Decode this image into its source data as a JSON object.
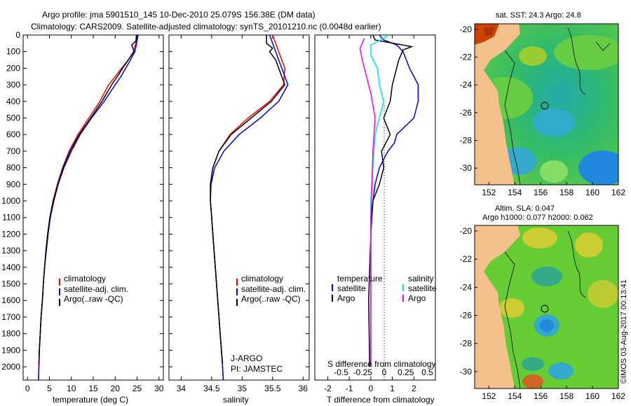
{
  "title": {
    "line1": "Argo profile: jma 5901510_145 10-Dec-2010 25.079S 156.38E (DM data)",
    "line2": "Climatology: CARS2009. Satellite-adjusted climatology: synTS_20101210.nc (0.0048d earlier)"
  },
  "colors": {
    "climatology": "#ff0000",
    "satellite": "#0000ff",
    "argo": "#000000",
    "satellite_s": "#00e5ee",
    "argo_s": "#ff00ff"
  },
  "chart_data": [
    {
      "id": "temperature",
      "type": "line",
      "xlabel": "temperature (deg C)",
      "xlim": [
        -1,
        31
      ],
      "xticks": [
        0,
        5,
        10,
        15,
        20,
        25,
        30
      ],
      "ylim": [
        2080,
        0
      ],
      "yticks": [
        0,
        100,
        200,
        300,
        400,
        500,
        600,
        700,
        800,
        900,
        1000,
        1100,
        1200,
        1300,
        1400,
        1500,
        1600,
        1700,
        1800,
        1900,
        2000
      ],
      "legend": [
        "climatology",
        "satellite-adj. clim.",
        "Argo(..raw -QC)"
      ],
      "series": [
        {
          "name": "climatology",
          "color": "#ff0000",
          "points": [
            [
              24.8,
              0
            ],
            [
              24.7,
              50
            ],
            [
              24.2,
              100
            ],
            [
              23,
              150
            ],
            [
              21.5,
              200
            ],
            [
              20,
              250
            ],
            [
              18.5,
              300
            ],
            [
              16.5,
              400
            ],
            [
              14,
              500
            ],
            [
              11.5,
              600
            ],
            [
              9.5,
              700
            ],
            [
              8,
              800
            ],
            [
              6.8,
              900
            ],
            [
              5.8,
              1000
            ],
            [
              5.1,
              1100
            ],
            [
              4.6,
              1200
            ],
            [
              4.2,
              1300
            ],
            [
              3.9,
              1400
            ],
            [
              3.6,
              1500
            ],
            [
              3.4,
              1600
            ],
            [
              3.1,
              1700
            ],
            [
              2.9,
              1800
            ],
            [
              2.7,
              1900
            ],
            [
              2.6,
              2000
            ],
            [
              2.5,
              2080
            ]
          ]
        },
        {
          "name": "satellite-adj. clim.",
          "color": "#0000ff",
          "points": [
            [
              25.2,
              0
            ],
            [
              24.9,
              50
            ],
            [
              24.5,
              100
            ],
            [
              23.5,
              150
            ],
            [
              22.4,
              200
            ],
            [
              21.3,
              250
            ],
            [
              20,
              300
            ],
            [
              17.5,
              400
            ],
            [
              14.6,
              500
            ],
            [
              12,
              600
            ],
            [
              10,
              700
            ],
            [
              8.3,
              800
            ],
            [
              7,
              900
            ],
            [
              6,
              1000
            ],
            [
              5.2,
              1100
            ],
            [
              4.7,
              1200
            ],
            [
              4.3,
              1300
            ],
            [
              3.9,
              1400
            ],
            [
              3.6,
              1500
            ],
            [
              3.4,
              1600
            ],
            [
              3.1,
              1700
            ],
            [
              2.9,
              1800
            ],
            [
              2.7,
              1900
            ],
            [
              2.6,
              2000
            ],
            [
              2.5,
              2080
            ]
          ]
        },
        {
          "name": "Argo(..raw -QC)",
          "color": "#000000",
          "points": [
            [
              24.9,
              0
            ],
            [
              24.9,
              30
            ],
            [
              23.8,
              60
            ],
            [
              24.3,
              100
            ],
            [
              23,
              150
            ],
            [
              21.7,
              200
            ],
            [
              20.5,
              250
            ],
            [
              19.2,
              300
            ],
            [
              17,
              400
            ],
            [
              14.4,
              500
            ],
            [
              11.8,
              600
            ],
            [
              9.7,
              700
            ],
            [
              8.1,
              800
            ],
            [
              6.9,
              900
            ],
            [
              5.9,
              1000
            ],
            [
              5.1,
              1100
            ],
            [
              4.6,
              1200
            ],
            [
              4.2,
              1300
            ],
            [
              3.9,
              1400
            ],
            [
              3.6,
              1500
            ],
            [
              3.4,
              1600
            ],
            [
              3.1,
              1700
            ],
            [
              2.9,
              1800
            ],
            [
              2.7,
              1900
            ],
            [
              2.6,
              1980
            ]
          ]
        }
      ]
    },
    {
      "id": "salinity",
      "type": "line",
      "xlabel": "salinity",
      "xlim": [
        33.8,
        36.1
      ],
      "xticks": [
        34,
        34.5,
        35,
        35.5,
        36
      ],
      "ylim": [
        2080,
        0
      ],
      "legend": [
        "climatology",
        "satellite-adj. clim.",
        "Argo(..raw -QC)"
      ],
      "annotations": [
        "J-ARGO",
        "PI: JAMSTEC"
      ],
      "series": [
        {
          "name": "climatology",
          "color": "#ff0000",
          "points": [
            [
              35.5,
              0
            ],
            [
              35.55,
              50
            ],
            [
              35.6,
              100
            ],
            [
              35.65,
              150
            ],
            [
              35.7,
              200
            ],
            [
              35.68,
              300
            ],
            [
              35.45,
              400
            ],
            [
              35.1,
              500
            ],
            [
              34.8,
              600
            ],
            [
              34.62,
              700
            ],
            [
              34.52,
              800
            ],
            [
              34.48,
              900
            ],
            [
              34.48,
              1000
            ],
            [
              34.5,
              1100
            ],
            [
              34.52,
              1200
            ],
            [
              34.54,
              1300
            ],
            [
              34.56,
              1400
            ],
            [
              34.58,
              1500
            ],
            [
              34.6,
              1600
            ],
            [
              34.62,
              1700
            ],
            [
              34.64,
              1800
            ],
            [
              34.66,
              1900
            ],
            [
              34.68,
              2000
            ],
            [
              34.69,
              2080
            ]
          ]
        },
        {
          "name": "satellite-adj. clim.",
          "color": "#0000ff",
          "points": [
            [
              35.45,
              0
            ],
            [
              35.5,
              50
            ],
            [
              35.55,
              100
            ],
            [
              35.6,
              150
            ],
            [
              35.65,
              200
            ],
            [
              35.75,
              300
            ],
            [
              35.6,
              400
            ],
            [
              35.3,
              500
            ],
            [
              34.95,
              600
            ],
            [
              34.7,
              700
            ],
            [
              34.55,
              800
            ],
            [
              34.49,
              900
            ],
            [
              34.48,
              1000
            ],
            [
              34.5,
              1100
            ],
            [
              34.52,
              1200
            ],
            [
              34.54,
              1300
            ],
            [
              34.56,
              1400
            ],
            [
              34.58,
              1500
            ],
            [
              34.6,
              1600
            ],
            [
              34.62,
              1700
            ],
            [
              34.64,
              1800
            ],
            [
              34.66,
              1900
            ],
            [
              34.68,
              2000
            ],
            [
              34.69,
              2080
            ]
          ]
        },
        {
          "name": "Argo(..raw -QC)",
          "color": "#000000",
          "points": [
            [
              35.4,
              0
            ],
            [
              35.4,
              50
            ],
            [
              35.5,
              80
            ],
            [
              35.45,
              100
            ],
            [
              35.55,
              150
            ],
            [
              35.6,
              200
            ],
            [
              35.7,
              300
            ],
            [
              35.48,
              400
            ],
            [
              35.15,
              500
            ],
            [
              34.82,
              600
            ],
            [
              34.62,
              700
            ],
            [
              34.52,
              800
            ],
            [
              34.48,
              900
            ],
            [
              34.48,
              1000
            ],
            [
              34.5,
              1100
            ],
            [
              34.52,
              1200
            ],
            [
              34.54,
              1300
            ],
            [
              34.56,
              1400
            ],
            [
              34.58,
              1500
            ],
            [
              34.6,
              1600
            ],
            [
              34.62,
              1700
            ],
            [
              34.64,
              1800
            ],
            [
              34.66,
              1900
            ],
            [
              34.68,
              1980
            ]
          ]
        }
      ]
    },
    {
      "id": "differences",
      "type": "line",
      "xlabel": "T difference from climatology",
      "xlabel_top": "S difference from climatology",
      "xlim": [
        -2.6,
        3
      ],
      "xticks": [
        -2,
        -1,
        0,
        1,
        2
      ],
      "xticks_top": [
        -0.5,
        -0.25,
        0,
        0.25,
        0.5
      ],
      "ylim": [
        2080,
        0
      ],
      "legend_temperature_title": "temperature",
      "legend_salinity_title": "salinity",
      "legend_temperature": [
        "satellite",
        "Argo"
      ],
      "legend_salinity": [
        "satellite",
        "Argo"
      ],
      "series": [
        {
          "name": "T satellite",
          "color": "#0000ff",
          "points": [
            [
              0.4,
              0
            ],
            [
              0.6,
              30
            ],
            [
              1.2,
              60
            ],
            [
              1.5,
              100
            ],
            [
              1.8,
              200
            ],
            [
              2.2,
              300
            ],
            [
              2.2,
              400
            ],
            [
              2.0,
              500
            ],
            [
              1.6,
              550
            ],
            [
              1.2,
              600
            ],
            [
              1.1,
              650
            ],
            [
              0.8,
              700
            ],
            [
              0.4,
              800
            ],
            [
              0.2,
              900
            ],
            [
              0.1,
              1000
            ],
            [
              0,
              1100
            ],
            [
              0,
              1500
            ],
            [
              0,
              2000
            ]
          ]
        },
        {
          "name": "T Argo",
          "color": "#000000",
          "points": [
            [
              0.1,
              0
            ],
            [
              0.2,
              30
            ],
            [
              1.9,
              70
            ],
            [
              1.5,
              90
            ],
            [
              1.3,
              150
            ],
            [
              1.2,
              200
            ],
            [
              1.0,
              300
            ],
            [
              0.9,
              400
            ],
            [
              0.6,
              500
            ],
            [
              0.9,
              600
            ],
            [
              0.5,
              700
            ],
            [
              0.6,
              800
            ],
            [
              0.4,
              900
            ],
            [
              0.1,
              1000
            ],
            [
              0,
              1200
            ],
            [
              -0.1,
              1600
            ],
            [
              -0.05,
              2000
            ]
          ]
        },
        {
          "name": "S satellite",
          "color": "#00e5ee",
          "points": [
            [
              0.8,
              0
            ],
            [
              0.6,
              20
            ],
            [
              0,
              60
            ],
            [
              0,
              120
            ],
            [
              0.3,
              200
            ],
            [
              0.4,
              300
            ],
            [
              0.6,
              400
            ],
            [
              0.4,
              500
            ],
            [
              0.2,
              600
            ],
            [
              0.1,
              800
            ],
            [
              0,
              1000
            ],
            [
              0,
              2000
            ]
          ]
        },
        {
          "name": "S Argo",
          "color": "#ff00ff",
          "points": [
            [
              -0.3,
              20
            ],
            [
              -0.5,
              80
            ],
            [
              -0.4,
              150
            ],
            [
              -0.2,
              250
            ],
            [
              0,
              350
            ],
            [
              0.2,
              500
            ],
            [
              0.1,
              700
            ],
            [
              0.05,
              900
            ],
            [
              0,
              1100
            ],
            [
              0,
              2000
            ]
          ]
        }
      ]
    },
    {
      "id": "sst_map",
      "type": "heatmap",
      "title": "sat. SST: 24.3 Argo: 24.8",
      "xticks": [
        152,
        154,
        156,
        158,
        160,
        162
      ],
      "yticks": [
        -20,
        -22,
        -24,
        -26,
        -28,
        -30
      ],
      "profile_marker": [
        156.38,
        -25.079
      ]
    },
    {
      "id": "sla_map",
      "type": "heatmap",
      "title_line1": "Altim. SLA: 0.047",
      "title_line2": "Argo h1000: 0.077 h2000: 0.062",
      "xticks": [
        152,
        154,
        156,
        158,
        160,
        162
      ],
      "yticks": [
        -20,
        -22,
        -24,
        -26,
        -28,
        -30
      ],
      "profile_marker": [
        156.38,
        -25.079
      ]
    }
  ],
  "credit": "©IMOS 03-Aug-2017 00:13:41"
}
